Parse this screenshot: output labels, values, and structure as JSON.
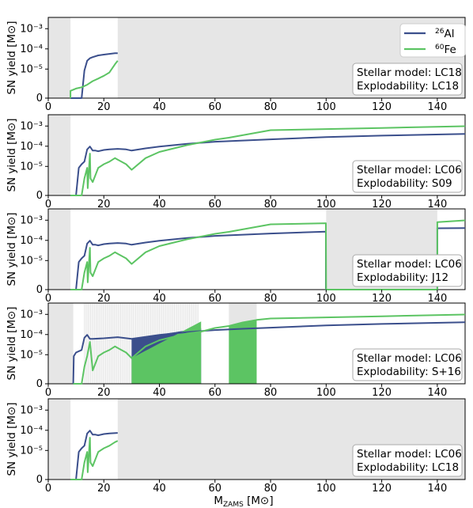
{
  "figure": {
    "xlabel_main": "M",
    "xlabel_sub": "ZAMS",
    "xlabel_unit": " [M",
    "xlabel_close": "]",
    "sun_symbol": "⊙"
  },
  "legend": {
    "al_mass": "26",
    "al_el": "Al",
    "fe_mass": "60",
    "fe_el": "Fe"
  },
  "chart_data": [
    {
      "type": "line",
      "ylabel": "SN yield [M⊙]",
      "xlim": [
        0,
        150
      ],
      "ylim": [
        0,
        0.002
      ],
      "yscale": "symlog",
      "xticks": [
        0,
        20,
        40,
        60,
        80,
        100,
        120,
        140
      ],
      "yticks": [
        "0",
        "10⁻⁵",
        "10⁻⁴",
        "10⁻³"
      ],
      "legend": "top-right",
      "annotation": [
        "Stellar model: LC18",
        "Explodability: LC18"
      ],
      "gray": [
        [
          0,
          8
        ],
        [
          25,
          150
        ]
      ],
      "series": [
        {
          "name": "²⁶Al",
          "color": "#3b4f8c",
          "x": [
            8,
            11,
            12,
            13,
            14,
            15,
            16,
            18,
            20,
            22,
            24,
            25
          ],
          "y": [
            0,
            0,
            0,
            1e-05,
            3e-05,
            4e-05,
            4.5e-05,
            5.5e-05,
            6e-05,
            6.5e-05,
            7e-05,
            7e-05
          ]
        },
        {
          "name": "⁶⁰Fe",
          "color": "#5cc463",
          "x": [
            8,
            8,
            10,
            12,
            14,
            16,
            18,
            20,
            22,
            24,
            25
          ],
          "y": [
            0,
            1e-06,
            1.3e-06,
            1.5e-06,
            2e-06,
            3e-06,
            4e-06,
            5.5e-06,
            8e-06,
            2e-05,
            3e-05
          ]
        }
      ]
    },
    {
      "type": "line",
      "ylabel": "SN yield [M⊙]",
      "xlim": [
        0,
        150
      ],
      "ylim": [
        0,
        0.002
      ],
      "yscale": "symlog",
      "xticks": [
        0,
        20,
        40,
        60,
        80,
        100,
        120,
        140
      ],
      "yticks": [
        "0",
        "10⁻⁵",
        "10⁻⁴",
        "10⁻³"
      ],
      "annotation": [
        "Stellar model: LC06",
        "Explodability: S09"
      ],
      "gray": [
        [
          0,
          8
        ]
      ],
      "series": [
        {
          "name": "²⁶Al",
          "color": "#3b4f8c",
          "x": [
            8,
            10,
            11,
            12,
            13,
            14,
            15,
            16,
            17,
            18,
            20,
            22,
            25,
            28,
            30,
            35,
            40,
            50,
            60,
            80,
            100,
            120,
            150
          ],
          "y": [
            0,
            0,
            1e-05,
            1.5e-05,
            2e-05,
            8e-05,
            0.00011,
            7e-05,
            7e-05,
            6.5e-05,
            7.5e-05,
            8e-05,
            8.5e-05,
            8e-05,
            7e-05,
            9e-05,
            0.00011,
            0.00015,
            0.00019,
            0.00025,
            0.00032,
            0.00038,
            0.00046
          ]
        },
        {
          "name": "⁶⁰Fe",
          "color": "#5cc463",
          "x": [
            8,
            11,
            12,
            13,
            14,
            14.2,
            15,
            15.2,
            16,
            18,
            20,
            22,
            24,
            25,
            28,
            30,
            35,
            40,
            50,
            60,
            65,
            80,
            100,
            120,
            150
          ],
          "y": [
            0,
            0,
            0,
            3e-06,
            1e-05,
            1e-06,
            5e-05,
            3e-06,
            2e-06,
            1e-05,
            1.5e-05,
            2e-05,
            3e-05,
            2.5e-05,
            1.5e-05,
            8e-06,
            3e-05,
            6e-05,
            0.00013,
            0.00024,
            0.0003,
            0.0007,
            0.0008,
            0.0009,
            0.0011
          ]
        }
      ]
    },
    {
      "type": "line",
      "ylabel": "SN yield [M⊙]",
      "xlim": [
        0,
        150
      ],
      "ylim": [
        0,
        0.002
      ],
      "yscale": "symlog",
      "xticks": [
        0,
        20,
        40,
        60,
        80,
        100,
        120,
        140
      ],
      "yticks": [
        "0",
        "10⁻⁵",
        "10⁻⁴",
        "10⁻³"
      ],
      "annotation": [
        "Stellar model: LC06",
        "Explodability: J12"
      ],
      "gray": [
        [
          0,
          8
        ],
        [
          100,
          140
        ]
      ],
      "series": [
        {
          "name": "²⁶Al",
          "color": "#3b4f8c",
          "x": [
            8,
            10,
            11,
            12,
            13,
            14,
            15,
            16,
            17,
            18,
            20,
            22,
            25,
            28,
            30,
            35,
            40,
            50,
            60,
            80,
            99.9,
            99.9,
            140,
            140,
            150
          ],
          "y": [
            0,
            0,
            1e-05,
            1.5e-05,
            2e-05,
            8e-05,
            0.00011,
            7e-05,
            7e-05,
            6.5e-05,
            7.5e-05,
            8e-05,
            8.5e-05,
            8e-05,
            7e-05,
            9e-05,
            0.00011,
            0.00015,
            0.00019,
            0.00025,
            0.00031,
            0,
            0,
            0.00045,
            0.00046
          ]
        },
        {
          "name": "⁶⁰Fe",
          "color": "#5cc463",
          "x": [
            8,
            11,
            12,
            13,
            14,
            14.2,
            15,
            15.2,
            16,
            18,
            20,
            22,
            24,
            25,
            28,
            30,
            35,
            40,
            50,
            60,
            65,
            80,
            99.9,
            100,
            140,
            140,
            150
          ],
          "y": [
            0,
            0,
            0,
            3e-06,
            1e-05,
            1e-06,
            5e-05,
            3e-06,
            2e-06,
            1e-05,
            1.5e-05,
            2e-05,
            3e-05,
            2.5e-05,
            1.5e-05,
            8e-06,
            3e-05,
            6e-05,
            0.00013,
            0.00024,
            0.0003,
            0.0007,
            0.0008,
            0,
            0,
            0.0009,
            0.0011
          ]
        }
      ]
    },
    {
      "type": "line",
      "ylabel": "SN yield [M⊙]",
      "xlim": [
        0,
        150
      ],
      "ylim": [
        0,
        0.002
      ],
      "yscale": "symlog",
      "xticks": [
        0,
        20,
        40,
        60,
        80,
        100,
        120,
        140
      ],
      "yticks": [
        "0",
        "10⁻⁵",
        "10⁻⁴",
        "10⁻³"
      ],
      "annotation": [
        "Stellar model: LC06",
        "Explodability: S+16"
      ],
      "gray": [
        [
          0,
          9
        ]
      ],
      "series": [
        {
          "name": "²⁶Al",
          "color": "#3b4f8c",
          "x": [
            9,
            9.2,
            10,
            12,
            13,
            14,
            15,
            16,
            20,
            25,
            30,
            40,
            50,
            55,
            60,
            70,
            80,
            100,
            120,
            150
          ],
          "y": [
            0,
            1e-05,
            1.5e-05,
            2e-05,
            8e-05,
            0.00011,
            7e-05,
            7e-05,
            7.5e-05,
            8.5e-05,
            7e-05,
            0.00011,
            0.00015,
            0.00017,
            0.00019,
            0.00022,
            0.00025,
            0.00032,
            0.00038,
            0.00046
          ]
        },
        {
          "name": "⁶⁰Fe",
          "color": "#5cc463",
          "x": [
            9,
            11,
            12,
            13,
            14,
            15,
            16,
            18,
            20,
            22,
            24,
            25,
            28,
            30,
            35,
            40,
            50,
            55,
            60,
            65,
            70,
            75,
            80,
            100,
            120,
            150
          ],
          "y": [
            0,
            0,
            0,
            3e-06,
            1e-05,
            5e-05,
            2e-06,
            1e-05,
            1.5e-05,
            2e-05,
            3e-05,
            2.5e-05,
            1.5e-05,
            8e-06,
            3e-05,
            6e-05,
            0.00013,
            0.00016,
            0.00024,
            0.0003,
            0.00045,
            0.0006,
            0.0007,
            0.0008,
            0.0009,
            0.0011
          ]
        }
      ]
    },
    {
      "type": "line",
      "ylabel": "SN yield [M⊙]",
      "xlim": [
        0,
        150
      ],
      "ylim": [
        0,
        0.002
      ],
      "yscale": "symlog",
      "xticks": [
        0,
        20,
        40,
        60,
        80,
        100,
        120,
        140
      ],
      "yticks": [
        "0",
        "10⁻⁵",
        "10⁻⁴",
        "10⁻³"
      ],
      "annotation": [
        "Stellar model: LC06",
        "Explodability: LC18"
      ],
      "gray": [
        [
          0,
          8
        ],
        [
          25,
          150
        ]
      ],
      "series": [
        {
          "name": "²⁶Al",
          "color": "#3b4f8c",
          "x": [
            8,
            10,
            11,
            12,
            13,
            14,
            15,
            16,
            17,
            18,
            20,
            22,
            25
          ],
          "y": [
            0,
            0,
            1e-05,
            1.5e-05,
            2e-05,
            8e-05,
            0.00011,
            7e-05,
            7e-05,
            6.5e-05,
            7.5e-05,
            8e-05,
            8.5e-05
          ]
        },
        {
          "name": "⁶⁰Fe",
          "color": "#5cc463",
          "x": [
            8,
            11,
            12,
            13,
            14,
            14.2,
            15,
            15.2,
            16,
            18,
            20,
            22,
            24,
            25
          ],
          "y": [
            0,
            0,
            0,
            3e-06,
            1e-05,
            1e-06,
            5e-05,
            3e-06,
            2e-06,
            1e-05,
            1.5e-05,
            2e-05,
            3e-05,
            3.5e-05
          ]
        }
      ]
    }
  ]
}
